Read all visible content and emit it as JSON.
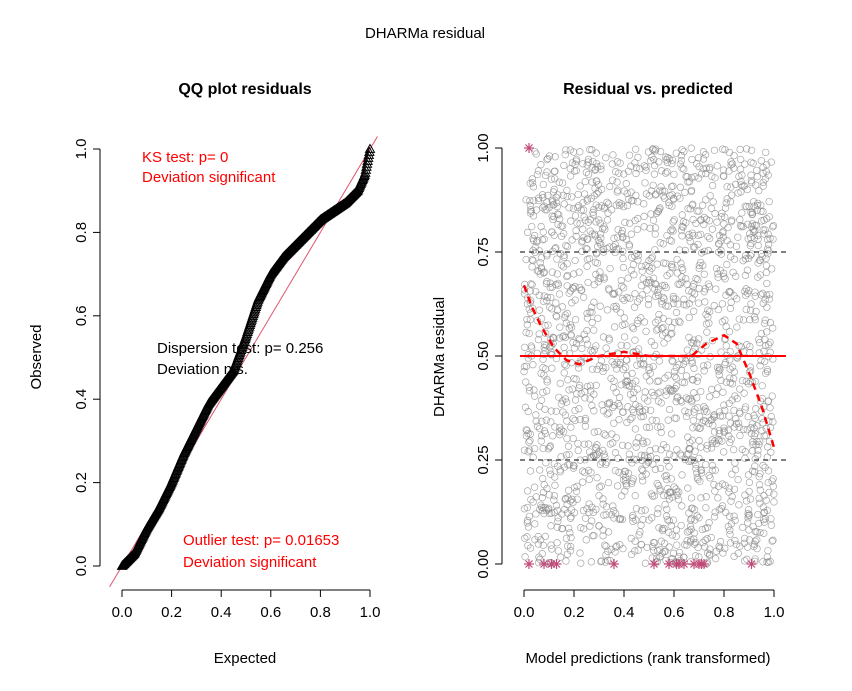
{
  "figure": {
    "title": "DHARMa residual"
  },
  "chart_data": [
    {
      "type": "scatter",
      "title": "QQ plot residuals",
      "xlabel": "Expected",
      "ylabel": "Observed",
      "xlim": [
        0,
        1
      ],
      "ylim": [
        0,
        1
      ],
      "x_ticks": [
        "0.0",
        "0.2",
        "0.4",
        "0.6",
        "0.8",
        "1.0"
      ],
      "y_ticks": [
        "0.0",
        "0.2",
        "0.4",
        "0.6",
        "0.8",
        "1.0"
      ],
      "reference_line": {
        "slope": 1,
        "intercept": 0,
        "color": "#df536b"
      },
      "qq_curve": {
        "expected": [
          0.0,
          0.05,
          0.1,
          0.15,
          0.2,
          0.25,
          0.3,
          0.35,
          0.4,
          0.45,
          0.5,
          0.55,
          0.6,
          0.65,
          0.7,
          0.75,
          0.8,
          0.85,
          0.9,
          0.95,
          0.98,
          1.0
        ],
        "observed": [
          0.0,
          0.03,
          0.09,
          0.14,
          0.2,
          0.27,
          0.33,
          0.39,
          0.43,
          0.47,
          0.55,
          0.64,
          0.7,
          0.74,
          0.77,
          0.8,
          0.83,
          0.85,
          0.87,
          0.9,
          0.94,
          1.0
        ]
      },
      "annotations": {
        "ks_line1": "KS test: p= 0",
        "ks_line2": "Deviation  significant",
        "disp_line1": "Dispersion test: p= 0.256",
        "disp_line2": "Deviation n.s.",
        "outlier_line1": "Outlier test: p= 0.01653",
        "outlier_line2": "Deviation  significant"
      },
      "colors": {
        "significant": "#ff0000",
        "ns": "#000000"
      }
    },
    {
      "type": "scatter",
      "title": "Residual vs. predicted",
      "xlabel": "Model predictions (rank transformed)",
      "ylabel": "DHARMa residual",
      "xlim": [
        0,
        1
      ],
      "ylim": [
        0,
        1
      ],
      "x_ticks": [
        "0.0",
        "0.2",
        "0.4",
        "0.6",
        "0.8",
        "1.0"
      ],
      "y_ticks": [
        "0.00",
        "0.25",
        "0.50",
        "0.75",
        "1.00"
      ],
      "hlines": [
        {
          "y": 0.25,
          "style": "dashed",
          "color": "#000000"
        },
        {
          "y": 0.5,
          "style": "solid",
          "color": "#ff0000"
        },
        {
          "y": 0.75,
          "style": "dashed",
          "color": "#000000"
        }
      ],
      "smooth": {
        "x": [
          0.0,
          0.03,
          0.07,
          0.12,
          0.17,
          0.22,
          0.3,
          0.4,
          0.5,
          0.6,
          0.67,
          0.73,
          0.8,
          0.85,
          0.9,
          0.95,
          1.0
        ],
        "y": [
          0.67,
          0.62,
          0.57,
          0.52,
          0.49,
          0.48,
          0.5,
          0.51,
          0.5,
          0.5,
          0.5,
          0.53,
          0.55,
          0.53,
          0.46,
          0.38,
          0.28
        ],
        "color": "#ff0000"
      },
      "outliers": {
        "x": [
          0.02,
          0.02,
          0.08,
          0.11,
          0.13,
          0.36,
          0.52,
          0.58,
          0.61,
          0.62,
          0.64,
          0.68,
          0.7,
          0.71,
          0.72,
          0.91
        ],
        "y": [
          1,
          0,
          0,
          0,
          0,
          0,
          0,
          0,
          0,
          0,
          0,
          0,
          0,
          0,
          0,
          0
        ],
        "color": "#c04a78"
      },
      "point_cloud": {
        "count": 2000,
        "color": "#8a8a8a",
        "x_range": [
          0,
          1
        ],
        "y_range": [
          0,
          1
        ]
      }
    }
  ]
}
